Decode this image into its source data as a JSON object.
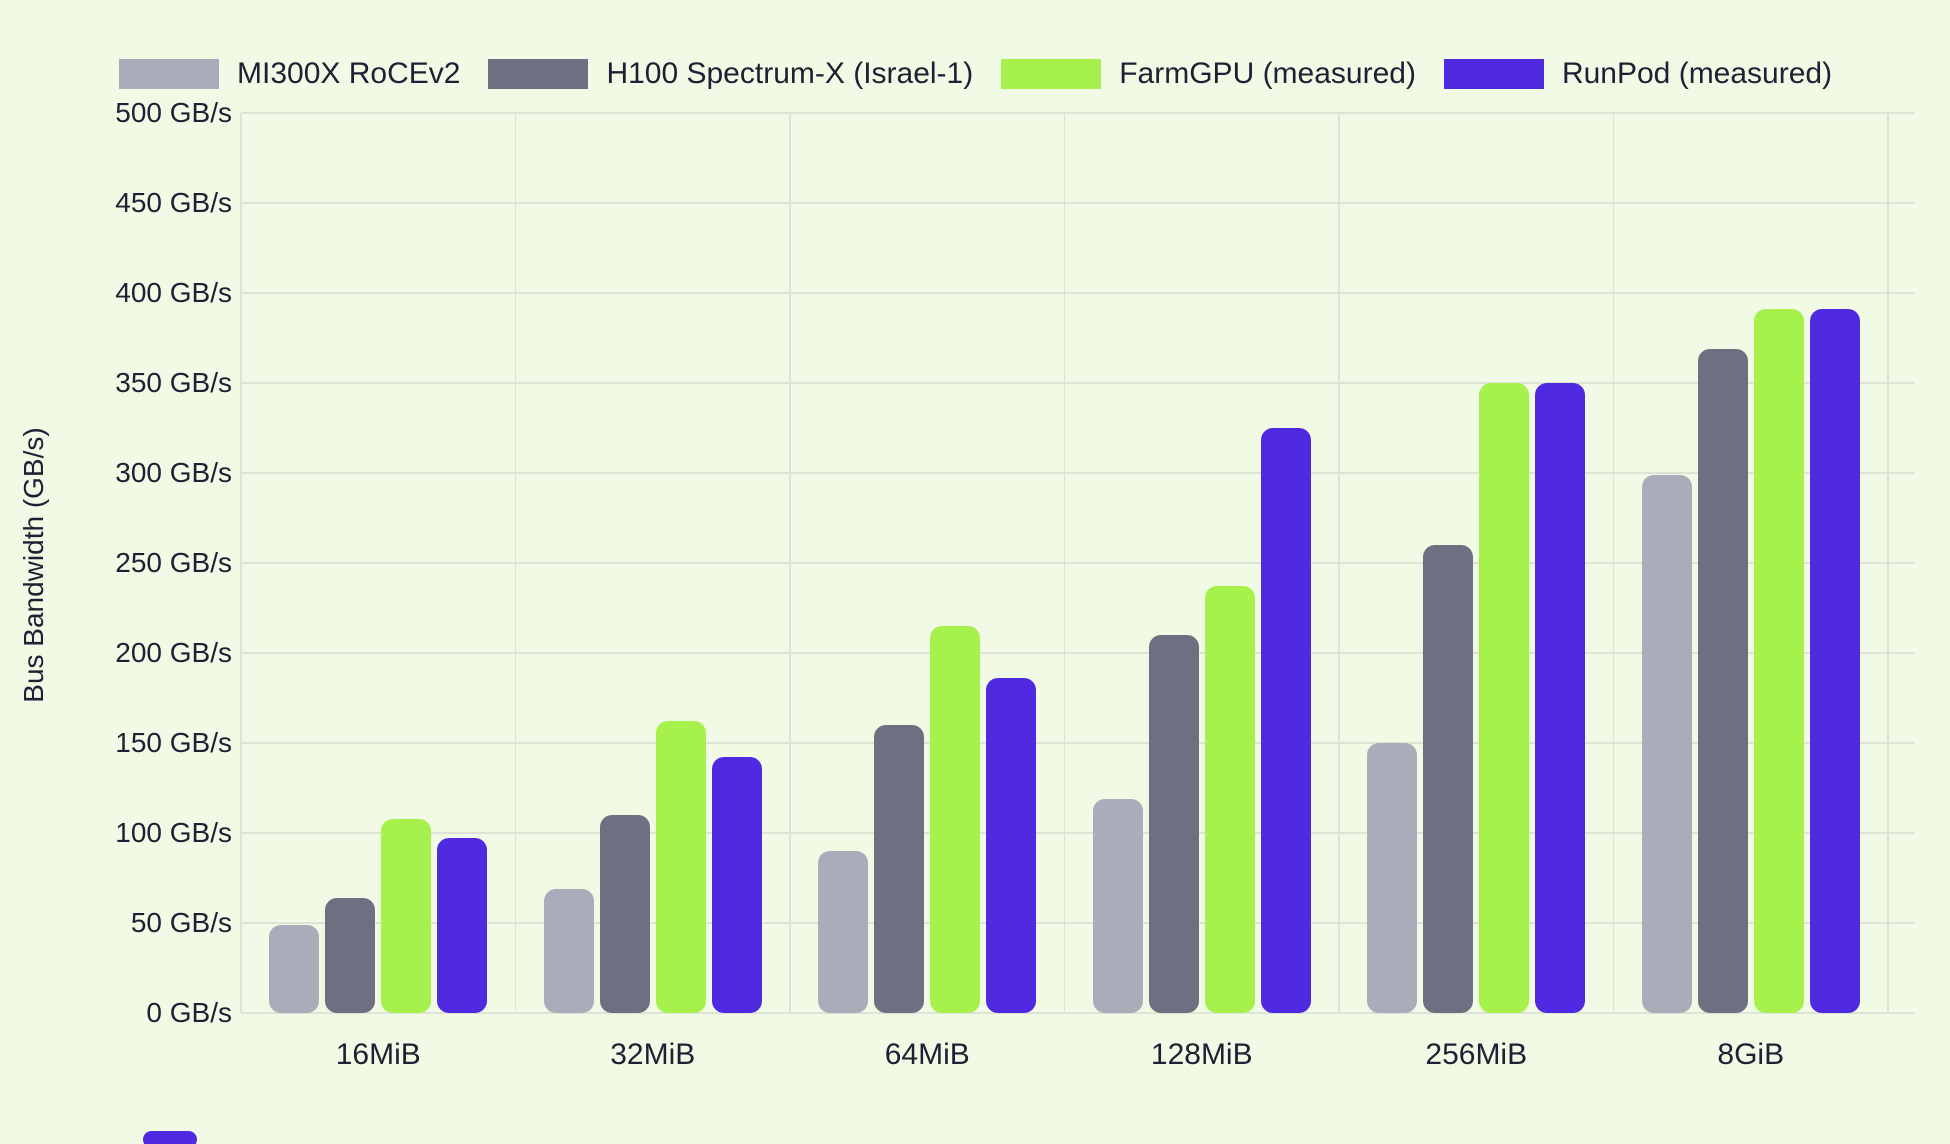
{
  "chart_data": {
    "type": "bar",
    "title": "",
    "ylabel": "Bus Bandwidth (GB/s)",
    "xlabel": "",
    "ylim": [
      0,
      500
    ],
    "ytick_step": 50,
    "ytick_suffix": " GB/s",
    "grid": true,
    "legend_position": "top",
    "categories": [
      "16MiB",
      "32MiB",
      "64MiB",
      "128MiB",
      "256MiB",
      "8GiB"
    ],
    "series": [
      {
        "name": "MI300X RoCEv2",
        "color": "#a9adba",
        "values": [
          49,
          69,
          90,
          119,
          150,
          299
        ]
      },
      {
        "name": "H100 Spectrum-X (Israel-1)",
        "color": "#6c7080",
        "values": [
          64,
          110,
          160,
          210,
          260,
          369
        ]
      },
      {
        "name": "FarmGPU (measured)",
        "color": "#a6f14c",
        "values": [
          108,
          162,
          215,
          237,
          350,
          391
        ]
      },
      {
        "name": "RunPod (measured)",
        "color": "#4f2ae0",
        "values": [
          97,
          142,
          186,
          325,
          350,
          391
        ]
      }
    ],
    "yticks": [
      "0 GB/s",
      "50 GB/s",
      "100 GB/s",
      "150 GB/s",
      "200 GB/s",
      "250 GB/s",
      "300 GB/s",
      "350 GB/s",
      "400 GB/s",
      "450 GB/s",
      "500 GB/s"
    ]
  },
  "colors": {
    "background": "#f0fae5",
    "gridline": "#dde4d6",
    "text": "#1c2133",
    "partial_bar": "#4f2ae0"
  },
  "partial_element": {
    "description": "top of purple bar from chart below fold"
  }
}
